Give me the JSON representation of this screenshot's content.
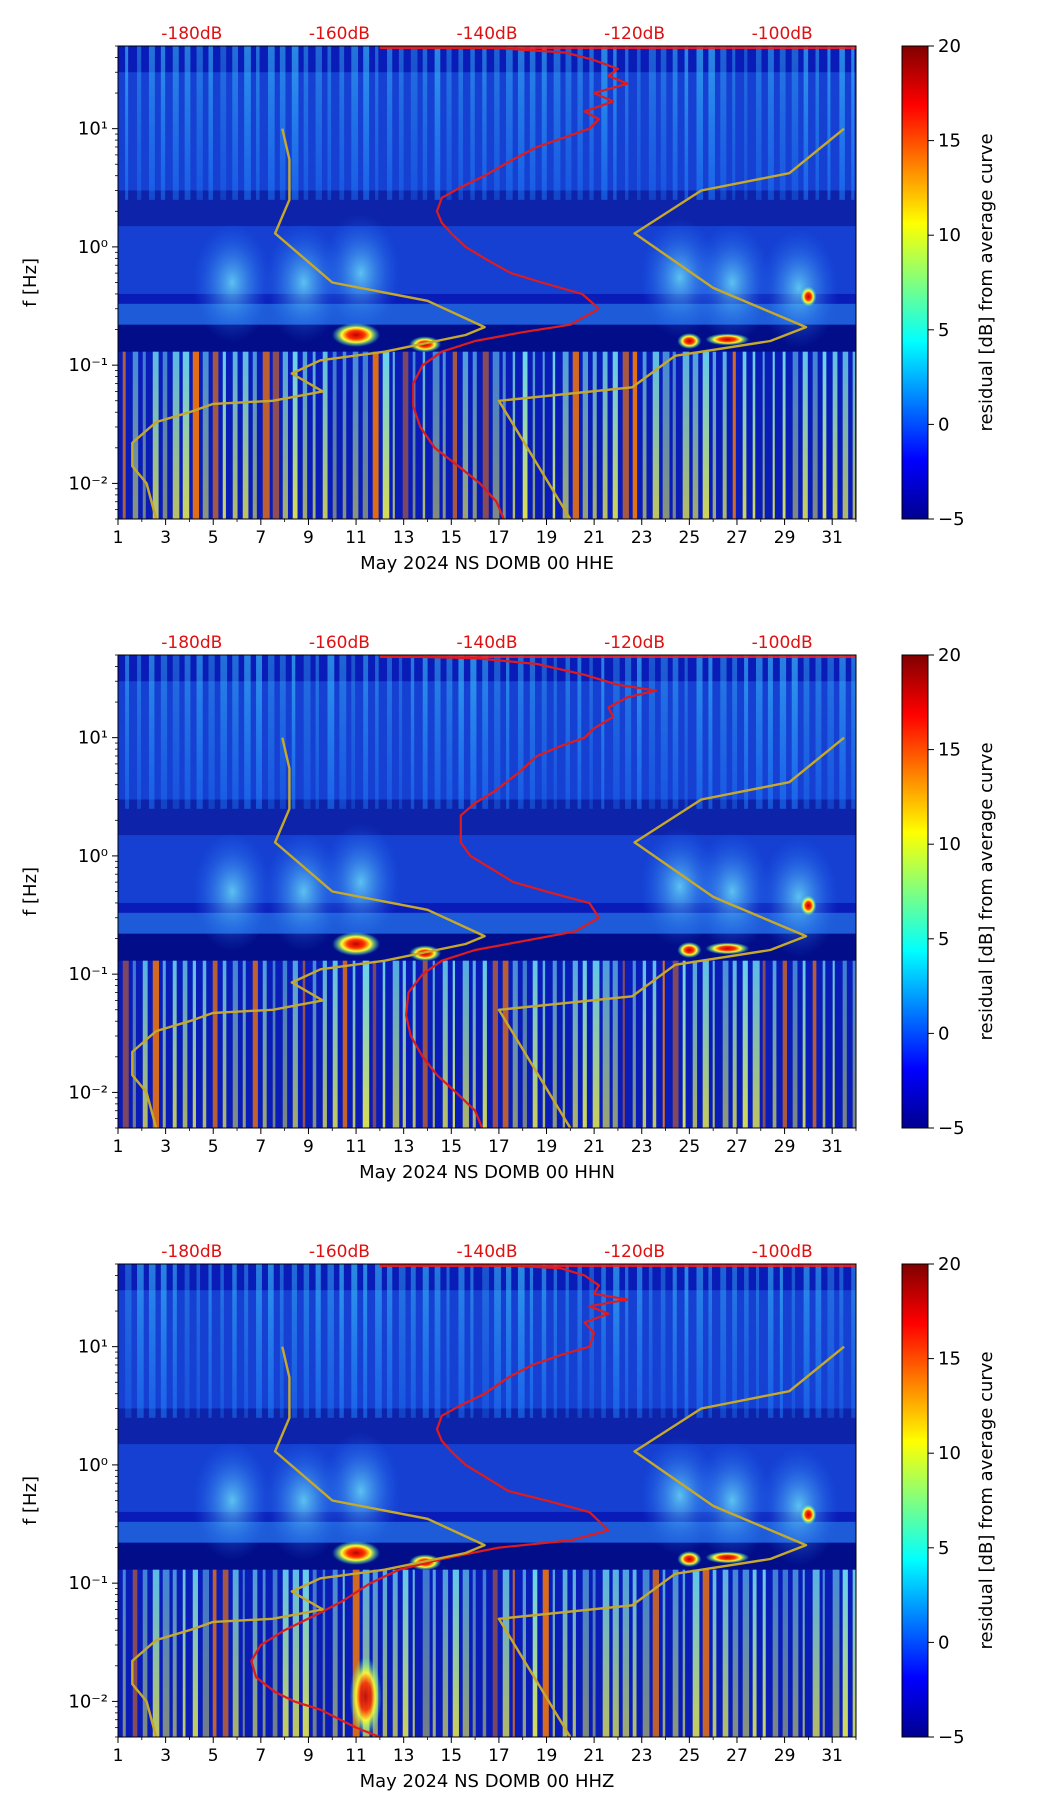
{
  "chart_data": [
    {
      "type": "heatmap",
      "title": "",
      "xlabel": "May 2024 NS DOMB 00 HHE",
      "ylabel": "f [Hz]",
      "x_ticks": [
        1,
        3,
        5,
        7,
        9,
        11,
        13,
        15,
        17,
        19,
        21,
        23,
        25,
        27,
        29,
        31
      ],
      "xlim": [
        1,
        32
      ],
      "y_scale": "log",
      "ylim": [
        0.005,
        50
      ],
      "y_ticks": [
        {
          "value": 0.01,
          "label": "10⁻²"
        },
        {
          "value": 0.1,
          "label": "10⁻¹"
        },
        {
          "value": 1,
          "label": "10⁰"
        },
        {
          "value": 10,
          "label": "10¹"
        }
      ],
      "top_ticks": [
        "-180dB",
        "-160dB",
        "-140dB",
        "-120dB",
        "-100dB"
      ],
      "colorbar": {
        "label": "residual [dB] from average curve",
        "range": [
          -5,
          20
        ],
        "ticks": [
          -5,
          0,
          5,
          10,
          15,
          20
        ]
      },
      "overlays": [
        {
          "name": "red average curve",
          "color": "#e11b1b",
          "points": [
            [
              17.2,
              0.005
            ],
            [
              16.9,
              0.007
            ],
            [
              16.2,
              0.01
            ],
            [
              15.3,
              0.014
            ],
            [
              14.3,
              0.02
            ],
            [
              13.7,
              0.03
            ],
            [
              13.4,
              0.045
            ],
            [
              13.4,
              0.07
            ],
            [
              13.8,
              0.1
            ],
            [
              14.6,
              0.13
            ],
            [
              16.0,
              0.16
            ],
            [
              18.0,
              0.19
            ],
            [
              20.0,
              0.22
            ],
            [
              21.2,
              0.3
            ],
            [
              20.5,
              0.4
            ],
            [
              18.8,
              0.5
            ],
            [
              17.5,
              0.6
            ],
            [
              16.4,
              0.8
            ],
            [
              15.6,
              1.0
            ],
            [
              15.0,
              1.3
            ],
            [
              14.6,
              1.6
            ],
            [
              14.4,
              2.0
            ],
            [
              14.6,
              2.6
            ],
            [
              15.4,
              3.2
            ],
            [
              16.4,
              4.0
            ],
            [
              17.6,
              5.5
            ],
            [
              18.6,
              7.0
            ],
            [
              19.8,
              8.5
            ],
            [
              20.8,
              10
            ],
            [
              21.2,
              12
            ],
            [
              20.6,
              14
            ],
            [
              21.8,
              17
            ],
            [
              21.0,
              20
            ],
            [
              22.4,
              24
            ],
            [
              21.6,
              28
            ],
            [
              22.0,
              32
            ],
            [
              21.0,
              38
            ],
            [
              19.8,
              44
            ],
            [
              17.0,
              48
            ],
            [
              12.0,
              49
            ]
          ]
        },
        {
          "name": "olive model curve",
          "color": "#c6a92b",
          "points": [
            [
              [
                2.6,
                0.005
              ],
              [
                2.2,
                0.01
              ],
              [
                1.6,
                0.014
              ],
              [
                1.6,
                0.022
              ],
              [
                2.6,
                0.033
              ],
              [
                4.0,
                0.04
              ],
              [
                5.0,
                0.047
              ],
              [
                7.5,
                0.05
              ],
              [
                9.6,
                0.06
              ],
              [
                8.3,
                0.085
              ],
              [
                9.5,
                0.11
              ],
              [
                12.2,
                0.13
              ],
              [
                15.6,
                0.18
              ],
              [
                16.4,
                0.21
              ],
              [
                14.0,
                0.35
              ],
              [
                10.0,
                0.5
              ],
              [
                7.6,
                1.3
              ],
              [
                8.2,
                2.5
              ],
              [
                8.2,
                5.5
              ],
              [
                7.9,
                10
              ]
            ],
            [
              [
                20.0,
                0.005
              ],
              [
                17.0,
                0.05
              ],
              [
                22.6,
                0.065
              ],
              [
                24.4,
                0.12
              ],
              [
                28.4,
                0.16
              ],
              [
                29.9,
                0.21
              ],
              [
                26.0,
                0.45
              ],
              [
                22.7,
                1.3
              ],
              [
                25.5,
                3.0
              ],
              [
                29.2,
                4.2
              ],
              [
                31.5,
                10
              ]
            ]
          ]
        }
      ]
    },
    {
      "type": "heatmap",
      "title": "",
      "xlabel": "May 2024 NS DOMB 00 HHN",
      "ylabel": "f [Hz]",
      "x_ticks": [
        1,
        3,
        5,
        7,
        9,
        11,
        13,
        15,
        17,
        19,
        21,
        23,
        25,
        27,
        29,
        31
      ],
      "xlim": [
        1,
        32
      ],
      "y_scale": "log",
      "ylim": [
        0.005,
        50
      ],
      "y_ticks": [
        {
          "value": 0.01,
          "label": "10⁻²"
        },
        {
          "value": 0.1,
          "label": "10⁻¹"
        },
        {
          "value": 1,
          "label": "10⁰"
        },
        {
          "value": 10,
          "label": "10¹"
        }
      ],
      "top_ticks": [
        "-180dB",
        "-160dB",
        "-140dB",
        "-120dB",
        "-100dB"
      ],
      "colorbar": {
        "label": "residual [dB] from average curve",
        "range": [
          -5,
          20
        ],
        "ticks": [
          -5,
          0,
          5,
          10,
          15,
          20
        ]
      },
      "overlays": [
        {
          "name": "red average curve",
          "color": "#e11b1b",
          "points": [
            [
              16.3,
              0.005
            ],
            [
              16.0,
              0.007
            ],
            [
              15.2,
              0.01
            ],
            [
              14.4,
              0.014
            ],
            [
              13.8,
              0.02
            ],
            [
              13.3,
              0.03
            ],
            [
              13.1,
              0.045
            ],
            [
              13.2,
              0.07
            ],
            [
              13.8,
              0.1
            ],
            [
              14.6,
              0.13
            ],
            [
              16.0,
              0.16
            ],
            [
              18.0,
              0.19
            ],
            [
              20.2,
              0.23
            ],
            [
              21.2,
              0.3
            ],
            [
              20.8,
              0.4
            ],
            [
              19.0,
              0.5
            ],
            [
              17.6,
              0.6
            ],
            [
              16.6,
              0.8
            ],
            [
              15.8,
              1.0
            ],
            [
              15.4,
              1.3
            ],
            [
              15.4,
              1.8
            ],
            [
              15.4,
              2.2
            ],
            [
              16.0,
              2.8
            ],
            [
              16.8,
              3.5
            ],
            [
              17.8,
              5.0
            ],
            [
              18.6,
              7.0
            ],
            [
              19.6,
              8.5
            ],
            [
              20.6,
              10
            ],
            [
              21.0,
              12
            ],
            [
              21.8,
              15
            ],
            [
              21.6,
              18
            ],
            [
              22.4,
              22
            ],
            [
              23.6,
              25
            ],
            [
              22.0,
              28
            ],
            [
              20.6,
              34
            ],
            [
              18.6,
              42
            ],
            [
              16.0,
              47
            ],
            [
              12.0,
              49
            ]
          ]
        },
        {
          "name": "olive model curve",
          "color": "#c6a92b",
          "points": [
            [
              [
                2.6,
                0.005
              ],
              [
                2.2,
                0.01
              ],
              [
                1.6,
                0.014
              ],
              [
                1.6,
                0.022
              ],
              [
                2.6,
                0.033
              ],
              [
                4.0,
                0.04
              ],
              [
                5.0,
                0.047
              ],
              [
                7.5,
                0.05
              ],
              [
                9.6,
                0.06
              ],
              [
                8.3,
                0.085
              ],
              [
                9.5,
                0.11
              ],
              [
                12.2,
                0.13
              ],
              [
                15.6,
                0.18
              ],
              [
                16.4,
                0.21
              ],
              [
                14.0,
                0.35
              ],
              [
                10.0,
                0.5
              ],
              [
                7.6,
                1.3
              ],
              [
                8.2,
                2.5
              ],
              [
                8.2,
                5.5
              ],
              [
                7.9,
                10
              ]
            ],
            [
              [
                20.0,
                0.005
              ],
              [
                17.0,
                0.05
              ],
              [
                22.6,
                0.065
              ],
              [
                24.4,
                0.12
              ],
              [
                28.4,
                0.16
              ],
              [
                29.9,
                0.21
              ],
              [
                26.0,
                0.45
              ],
              [
                22.7,
                1.3
              ],
              [
                25.5,
                3.0
              ],
              [
                29.2,
                4.2
              ],
              [
                31.5,
                10
              ]
            ]
          ]
        }
      ]
    },
    {
      "type": "heatmap",
      "title": "",
      "xlabel": "May 2024 NS DOMB 00 HHZ",
      "ylabel": "f [Hz]",
      "x_ticks": [
        1,
        3,
        5,
        7,
        9,
        11,
        13,
        15,
        17,
        19,
        21,
        23,
        25,
        27,
        29,
        31
      ],
      "xlim": [
        1,
        32
      ],
      "y_scale": "log",
      "ylim": [
        0.005,
        50
      ],
      "y_ticks": [
        {
          "value": 0.01,
          "label": "10⁻²"
        },
        {
          "value": 0.1,
          "label": "10⁻¹"
        },
        {
          "value": 1,
          "label": "10⁰"
        },
        {
          "value": 10,
          "label": "10¹"
        }
      ],
      "top_ticks": [
        "-180dB",
        "-160dB",
        "-140dB",
        "-120dB",
        "-100dB"
      ],
      "colorbar": {
        "label": "residual [dB] from average curve",
        "range": [
          -5,
          20
        ],
        "ticks": [
          -5,
          0,
          5,
          10,
          15,
          20
        ]
      },
      "overlays": [
        {
          "name": "red average curve",
          "color": "#e11b1b",
          "points": [
            [
              12.0,
              0.005
            ],
            [
              11.0,
              0.006
            ],
            [
              9.5,
              0.0085
            ],
            [
              8.4,
              0.01
            ],
            [
              7.6,
              0.012
            ],
            [
              6.8,
              0.016
            ],
            [
              6.6,
              0.022
            ],
            [
              7.0,
              0.03
            ],
            [
              8.0,
              0.04
            ],
            [
              9.4,
              0.055
            ],
            [
              10.4,
              0.07
            ],
            [
              11.6,
              0.1
            ],
            [
              12.8,
              0.13
            ],
            [
              14.6,
              0.16
            ],
            [
              17.0,
              0.2
            ],
            [
              20.0,
              0.23
            ],
            [
              21.6,
              0.28
            ],
            [
              20.8,
              0.4
            ],
            [
              19.0,
              0.5
            ],
            [
              17.4,
              0.6
            ],
            [
              16.4,
              0.8
            ],
            [
              15.6,
              1.0
            ],
            [
              15.0,
              1.3
            ],
            [
              14.6,
              1.6
            ],
            [
              14.4,
              2.0
            ],
            [
              14.6,
              2.6
            ],
            [
              15.4,
              3.2
            ],
            [
              16.4,
              4.0
            ],
            [
              17.4,
              5.5
            ],
            [
              18.4,
              7.0
            ],
            [
              19.6,
              8.5
            ],
            [
              20.8,
              10
            ],
            [
              21.0,
              13
            ],
            [
              20.6,
              16
            ],
            [
              21.6,
              19
            ],
            [
              20.8,
              22
            ],
            [
              22.4,
              25
            ],
            [
              21.0,
              28
            ],
            [
              21.2,
              33
            ],
            [
              20.6,
              40
            ],
            [
              19.6,
              46
            ],
            [
              17.0,
              49
            ],
            [
              12.0,
              49
            ]
          ]
        },
        {
          "name": "olive model curve",
          "color": "#c6a92b",
          "points": [
            [
              [
                2.6,
                0.005
              ],
              [
                2.2,
                0.01
              ],
              [
                1.6,
                0.014
              ],
              [
                1.6,
                0.022
              ],
              [
                2.6,
                0.033
              ],
              [
                4.0,
                0.04
              ],
              [
                5.0,
                0.047
              ],
              [
                7.5,
                0.05
              ],
              [
                9.6,
                0.06
              ],
              [
                8.3,
                0.085
              ],
              [
                9.5,
                0.11
              ],
              [
                12.2,
                0.13
              ],
              [
                15.6,
                0.18
              ],
              [
                16.4,
                0.21
              ],
              [
                14.0,
                0.35
              ],
              [
                10.0,
                0.5
              ],
              [
                7.6,
                1.3
              ],
              [
                8.2,
                2.5
              ],
              [
                8.2,
                5.5
              ],
              [
                7.9,
                10
              ]
            ],
            [
              [
                20.0,
                0.005
              ],
              [
                17.0,
                0.05
              ],
              [
                22.6,
                0.065
              ],
              [
                24.4,
                0.12
              ],
              [
                28.4,
                0.16
              ],
              [
                29.9,
                0.21
              ],
              [
                26.0,
                0.45
              ],
              [
                22.7,
                1.3
              ],
              [
                25.5,
                3.0
              ],
              [
                29.2,
                4.2
              ],
              [
                31.5,
                10
              ]
            ]
          ]
        }
      ]
    }
  ]
}
